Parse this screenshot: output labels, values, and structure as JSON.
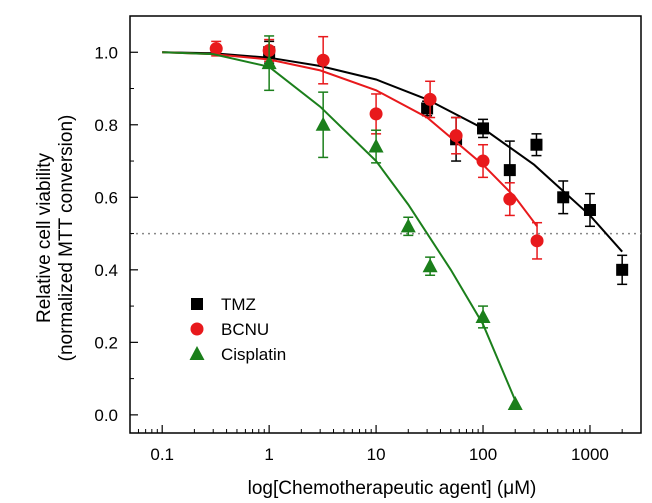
{
  "chart_data": {
    "type": "scatter",
    "title": "",
    "xlabel": "log[Chemotherapeutic agent] (μM)",
    "ylabel_lines": [
      "Relative cell viability",
      "(normalized MTT conversion)"
    ],
    "xscale": "log",
    "xlim": [
      0.05,
      3000
    ],
    "ylim": [
      -0.05,
      1.1
    ],
    "x_ticks": [
      0.1,
      1,
      10,
      100,
      1000
    ],
    "x_tick_labels": [
      "0.1",
      "1",
      "10",
      "100",
      "1000"
    ],
    "y_ticks": [
      0.0,
      0.2,
      0.4,
      0.6,
      0.8,
      1.0
    ],
    "y_tick_labels": [
      "0.0",
      "0.2",
      "0.4",
      "0.6",
      "0.8",
      "1.0"
    ],
    "grid": false,
    "legend_position": "lower-left",
    "reference_line": {
      "y": 0.5,
      "style": "dotted"
    },
    "series": [
      {
        "name": "TMZ",
        "marker": "square",
        "color": "#000000",
        "points": [
          {
            "x": 1,
            "y": 1.0,
            "err": 0.03
          },
          {
            "x": 30,
            "y": 0.845,
            "err": 0.02
          },
          {
            "x": 56,
            "y": 0.76,
            "err": 0.06
          },
          {
            "x": 100,
            "y": 0.79,
            "err": 0.025
          },
          {
            "x": 178,
            "y": 0.675,
            "err": 0.08
          },
          {
            "x": 316,
            "y": 0.745,
            "err": 0.03
          },
          {
            "x": 562,
            "y": 0.6,
            "err": 0.045
          },
          {
            "x": 1000,
            "y": 0.565,
            "err": 0.045
          },
          {
            "x": 2000,
            "y": 0.4,
            "err": 0.04
          }
        ],
        "fit": [
          [
            0.1,
            1.0
          ],
          [
            0.3,
            0.997
          ],
          [
            1,
            0.985
          ],
          [
            3,
            0.962
          ],
          [
            10,
            0.925
          ],
          [
            30,
            0.87
          ],
          [
            100,
            0.79
          ],
          [
            300,
            0.69
          ],
          [
            1000,
            0.55
          ],
          [
            2000,
            0.45
          ]
        ]
      },
      {
        "name": "BCNU",
        "marker": "circle",
        "color": "#e8191c",
        "points": [
          {
            "x": 0.32,
            "y": 1.01,
            "err": 0.02
          },
          {
            "x": 1,
            "y": 1.005,
            "err": 0.03
          },
          {
            "x": 3.2,
            "y": 0.978,
            "err": 0.065
          },
          {
            "x": 10,
            "y": 0.83,
            "err": 0.055
          },
          {
            "x": 32,
            "y": 0.87,
            "err": 0.05
          },
          {
            "x": 56,
            "y": 0.77,
            "err": 0.05
          },
          {
            "x": 100,
            "y": 0.7,
            "err": 0.045
          },
          {
            "x": 178,
            "y": 0.595,
            "err": 0.045
          },
          {
            "x": 320,
            "y": 0.48,
            "err": 0.05
          }
        ],
        "fit": [
          [
            0.1,
            1.0
          ],
          [
            0.3,
            0.995
          ],
          [
            1,
            0.98
          ],
          [
            3,
            0.95
          ],
          [
            10,
            0.895
          ],
          [
            30,
            0.82
          ],
          [
            100,
            0.69
          ],
          [
            200,
            0.6
          ],
          [
            320,
            0.52
          ]
        ]
      },
      {
        "name": "Cisplatin",
        "marker": "triangle",
        "color": "#1b7f1b",
        "points": [
          {
            "x": 1,
            "y": 0.97,
            "err": 0.075
          },
          {
            "x": 3.2,
            "y": 0.8,
            "err": 0.09
          },
          {
            "x": 10,
            "y": 0.74,
            "err": 0.045
          },
          {
            "x": 20,
            "y": 0.52,
            "err": 0.025
          },
          {
            "x": 32,
            "y": 0.41,
            "err": 0.025
          },
          {
            "x": 100,
            "y": 0.27,
            "err": 0.03
          },
          {
            "x": 200,
            "y": 0.03,
            "err": 0.0
          }
        ],
        "fit": [
          [
            0.1,
            1.0
          ],
          [
            0.3,
            0.995
          ],
          [
            1,
            0.96
          ],
          [
            3,
            0.85
          ],
          [
            10,
            0.7
          ],
          [
            20,
            0.58
          ],
          [
            50,
            0.4
          ],
          [
            100,
            0.25
          ],
          [
            200,
            0.04
          ]
        ]
      }
    ]
  }
}
